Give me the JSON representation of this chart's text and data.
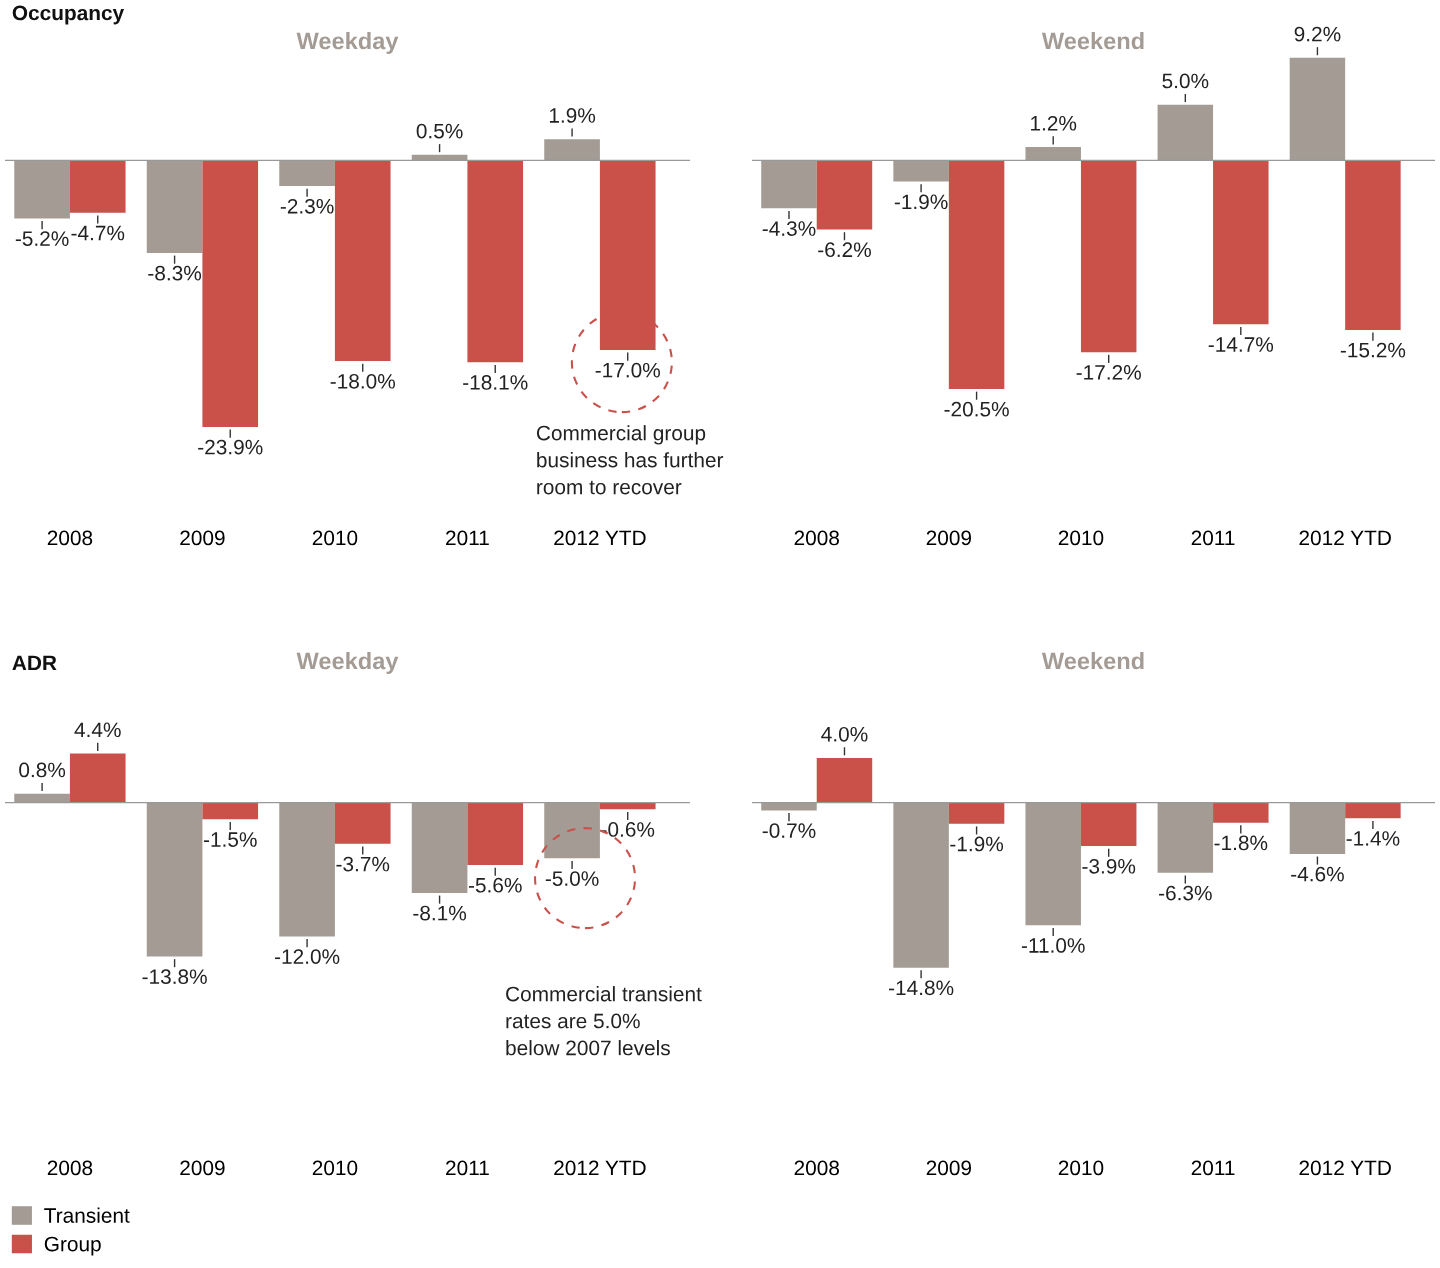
{
  "chart_data": [
    {
      "type": "bar",
      "title": "Weekday",
      "categories": [
        "2008",
        "2009",
        "2010",
        "2011",
        "2012 YTD"
      ],
      "legend": "bottom left",
      "annotations": [
        "Occupancy",
        "Commercial group\nbusiness has further\nroom to recover"
      ],
      "series": [
        {
          "name": "Transient",
          "color": "#a39b94",
          "values": [
            -5.2,
            -8.3,
            -2.3,
            0.5,
            1.9
          ],
          "value_labels": [
            "-5.2%",
            "-8.3%",
            "-2.3%",
            "0.5%",
            "1.9%"
          ]
        },
        {
          "name": "Group",
          "color": "#c9514a",
          "values": [
            -4.7,
            -23.9,
            -18.0,
            -18.1,
            -17.0
          ],
          "value_labels": [
            "-4.7%",
            "-23.9%",
            "-18.0%",
            "-18.1%",
            "-17.0%"
          ]
        }
      ]
    },
    {
      "type": "bar",
      "title": "Weekend",
      "categories": [
        "2008",
        "2009",
        "2010",
        "2011",
        "2012 YTD"
      ],
      "series": [
        {
          "color": "#a39b94",
          "values": [
            -4.3,
            -1.9,
            1.2,
            5.0,
            9.2
          ],
          "value_labels": [
            "-4.3%",
            "-1.9%",
            "1.2%",
            "5.0%",
            "9.2%"
          ]
        },
        {
          "color": "#c9514a",
          "values": [
            -6.2,
            -20.5,
            -17.2,
            -14.7,
            -15.2
          ],
          "value_labels": [
            "-6.2%",
            "-20.5%",
            "-17.2%",
            "-14.7%",
            "-15.2%"
          ]
        }
      ]
    },
    {
      "type": "bar",
      "title": "Weekday",
      "categories": [
        "2008",
        "2009",
        "2010",
        "2011",
        "2012 YTD"
      ],
      "annotations": [
        "ADR",
        "Commercial transient\nrates are 5.0%\nbelow 2007 levels"
      ],
      "series": [
        {
          "color": "#a39b94",
          "values": [
            0.8,
            -13.8,
            -12.0,
            -8.1,
            -5.0
          ],
          "value_labels": [
            "0.8%",
            "-13.8%",
            "-12.0%",
            "-8.1%",
            "-5.0%"
          ]
        },
        {
          "color": "#c9514a",
          "values": [
            4.4,
            -1.5,
            -3.7,
            -5.6,
            -0.6
          ],
          "value_labels": [
            "4.4%",
            "-1.5%",
            "-3.7%",
            "-5.6%",
            "-0.6%"
          ]
        }
      ]
    },
    {
      "type": "bar",
      "title": "Weekend",
      "categories": [
        "2008",
        "2009",
        "2010",
        "2011",
        "2012 YTD"
      ],
      "series": [
        {
          "color": "#a39b94",
          "values": [
            -0.7,
            -14.8,
            -11.0,
            -6.3,
            -4.6
          ],
          "value_labels": [
            "-0.7%",
            "-14.8%",
            "-11.0%",
            "-6.3%",
            "-4.6%"
          ]
        },
        {
          "color": "#c9514a",
          "values": [
            4.0,
            -1.9,
            -3.9,
            -1.8,
            -1.4
          ],
          "value_labels": [
            "4.0%",
            "-1.9%",
            "-3.9%",
            "-1.8%",
            "-1.4%"
          ]
        }
      ]
    }
  ]
}
